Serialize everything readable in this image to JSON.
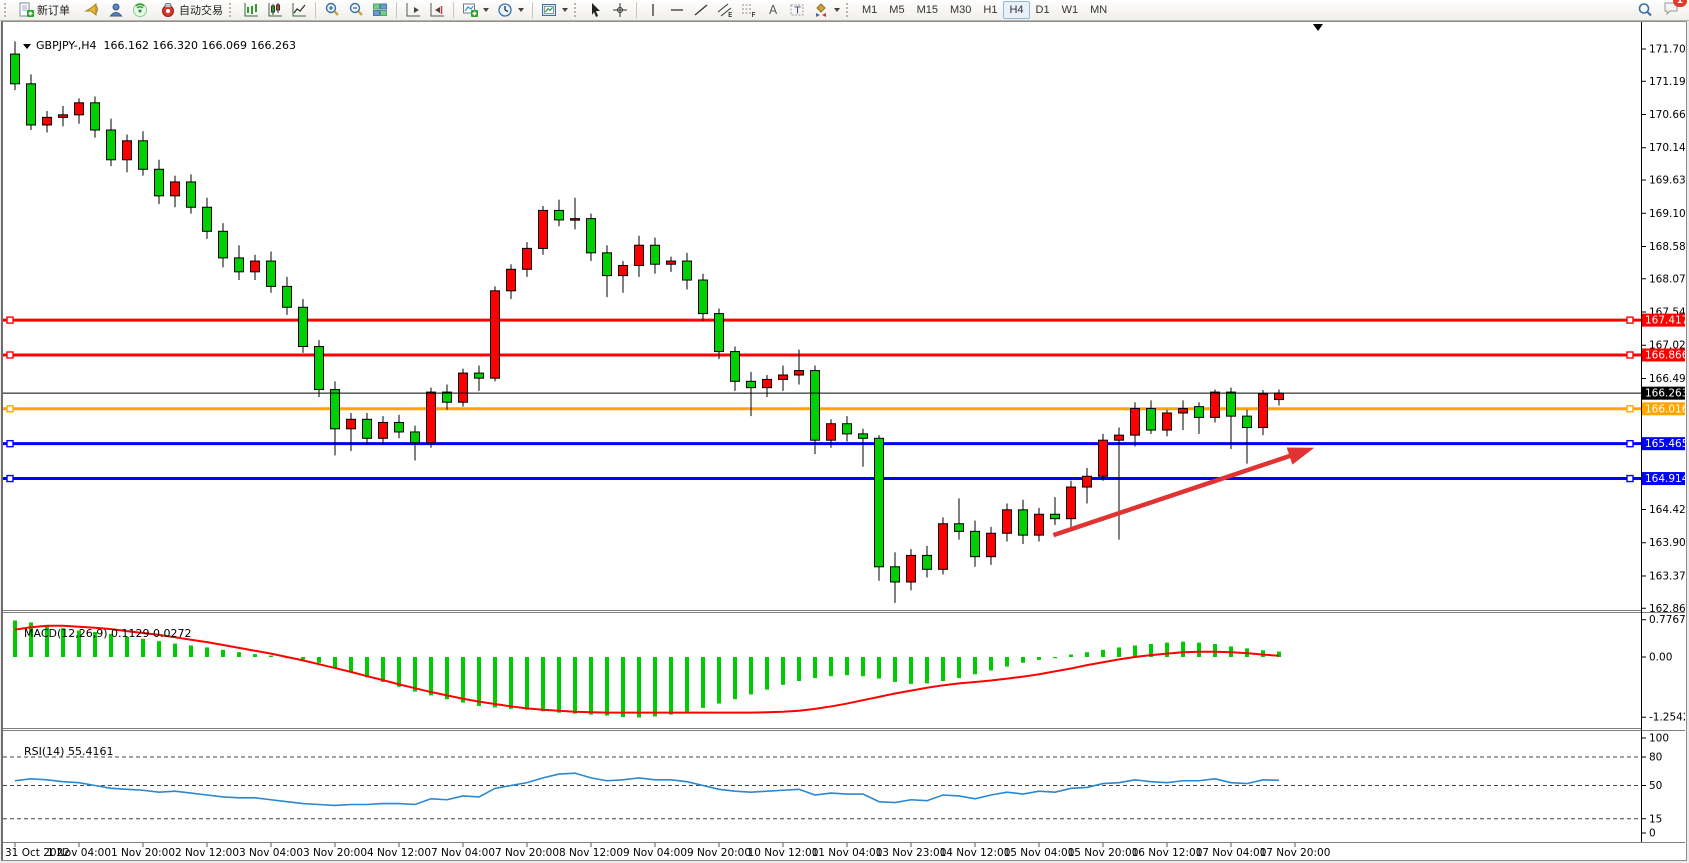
{
  "toolbar": {
    "new_order": "新订单",
    "autotrading": "自动交易",
    "timeframes": [
      "M1",
      "M5",
      "M15",
      "M30",
      "H1",
      "H4",
      "D1",
      "W1",
      "MN"
    ],
    "active_timeframe": "H4",
    "notification_badge": "1",
    "glyphs": {
      "channel": "E",
      "fibo": "F",
      "text": "A",
      "label": "T"
    }
  },
  "chart": {
    "symbol_with_period": "GBPJPY-,H4",
    "ohlc_text": "166.162 166.320 166.069 166.263"
  },
  "indicators": {
    "macd": {
      "title": "MACD(12,26,9)",
      "values": "0.1129 0.0272"
    },
    "rsi": {
      "title": "RSI(14)",
      "value": "55.4161"
    }
  },
  "chart_data": {
    "type": "candlestick",
    "symbol": "GBPJPY-",
    "timeframe": "H4",
    "current_bar": {
      "open": 166.162,
      "high": 166.32,
      "low": 166.069,
      "close": 166.263
    },
    "colors": {
      "up": "#fe0000",
      "down": "#00cf00",
      "wick": "#000000",
      "macd_hist": "#00cc00",
      "macd_signal": "#ff0000",
      "rsi_line": "#2a87d0",
      "arrow": "#e23333",
      "line_red": "#ff0000",
      "line_orange": "#ffa500",
      "line_blue": "#0000ff",
      "line_black": "#000000"
    },
    "price_axis_ticks": [
      171.7,
      171.19,
      170.665,
      170.14,
      169.63,
      169.105,
      168.58,
      168.07,
      167.545,
      167.02,
      166.495,
      164.425,
      163.9,
      163.375,
      162.865
    ],
    "price_range": [
      162.84,
      172.13
    ],
    "hlines": [
      {
        "price": 167.417,
        "color": "#ff0000",
        "width": 3,
        "handles": true
      },
      {
        "price": 166.866,
        "color": "#ff0000",
        "width": 3,
        "handles": true
      },
      {
        "price": 166.016,
        "color": "#ffa500",
        "width": 3,
        "handles": true
      },
      {
        "price": 165.465,
        "color": "#0000ff",
        "width": 3,
        "handles": true
      },
      {
        "price": 164.914,
        "color": "#0000ff",
        "width": 3,
        "handles": true
      }
    ],
    "current_price_line": {
      "price": 166.263,
      "color": "#000000",
      "width": 1
    },
    "axis_badges": [
      {
        "label": "167.417",
        "price": 167.417,
        "bg": "#ff0000"
      },
      {
        "label": "166.866",
        "price": 166.866,
        "bg": "#ff0000"
      },
      {
        "label": "166.263",
        "price": 166.263,
        "bg": "#000000"
      },
      {
        "label": "166.016",
        "price": 166.016,
        "bg": "#ffa500"
      },
      {
        "label": "165.465",
        "price": 165.465,
        "bg": "#0000ff"
      },
      {
        "label": "164.914",
        "price": 164.914,
        "bg": "#0000ff"
      }
    ],
    "time_labels": [
      "31 Oct 2022",
      "1 Nov 04:00",
      "1 Nov 20:00",
      "2 Nov 12:00",
      "3 Nov 04:00",
      "3 Nov 20:00",
      "4 Nov 12:00",
      "7 Nov 04:00",
      "7 Nov 20:00",
      "8 Nov 12:00",
      "9 Nov 04:00",
      "9 Nov 20:00",
      "10 Nov 12:00",
      "11 Nov 04:00",
      "13 Nov 23:00",
      "14 Nov 12:00",
      "15 Nov 04:00",
      "15 Nov 20:00",
      "16 Nov 12:00",
      "17 Nov 04:00",
      "17 Nov 20:00"
    ],
    "candles": [
      [
        171.62,
        171.82,
        171.05,
        171.15
      ],
      [
        171.15,
        171.3,
        170.42,
        170.5
      ],
      [
        170.5,
        170.72,
        170.38,
        170.62
      ],
      [
        170.62,
        170.8,
        170.48,
        170.66
      ],
      [
        170.66,
        170.92,
        170.52,
        170.85
      ],
      [
        170.85,
        170.95,
        170.3,
        170.42
      ],
      [
        170.42,
        170.6,
        169.85,
        169.95
      ],
      [
        169.95,
        170.35,
        169.75,
        170.25
      ],
      [
        170.25,
        170.4,
        169.7,
        169.8
      ],
      [
        169.8,
        169.95,
        169.25,
        169.38
      ],
      [
        169.38,
        169.7,
        169.2,
        169.6
      ],
      [
        169.6,
        169.72,
        169.1,
        169.2
      ],
      [
        169.2,
        169.35,
        168.7,
        168.82
      ],
      [
        168.82,
        168.95,
        168.25,
        168.4
      ],
      [
        168.4,
        168.6,
        168.05,
        168.18
      ],
      [
        168.18,
        168.45,
        168.05,
        168.35
      ],
      [
        168.35,
        168.5,
        167.85,
        167.95
      ],
      [
        167.95,
        168.1,
        167.5,
        167.62
      ],
      [
        167.62,
        167.75,
        166.9,
        167.0
      ],
      [
        167.0,
        167.1,
        166.2,
        166.32
      ],
      [
        166.32,
        166.45,
        165.28,
        165.7
      ],
      [
        165.7,
        165.95,
        165.35,
        165.85
      ],
      [
        165.85,
        165.95,
        165.45,
        165.55
      ],
      [
        165.55,
        165.9,
        165.45,
        165.8
      ],
      [
        165.8,
        165.92,
        165.55,
        165.65
      ],
      [
        165.65,
        165.75,
        165.2,
        165.48
      ],
      [
        165.48,
        166.35,
        165.4,
        166.28
      ],
      [
        166.28,
        166.4,
        166.0,
        166.12
      ],
      [
        166.12,
        166.65,
        166.05,
        166.58
      ],
      [
        166.58,
        166.7,
        166.3,
        166.5
      ],
      [
        166.5,
        167.95,
        166.45,
        167.88
      ],
      [
        167.88,
        168.3,
        167.75,
        168.22
      ],
      [
        168.22,
        168.65,
        168.1,
        168.55
      ],
      [
        168.55,
        169.22,
        168.45,
        169.15
      ],
      [
        169.15,
        169.32,
        168.9,
        169.0
      ],
      [
        169.0,
        169.35,
        168.85,
        169.02
      ],
      [
        169.02,
        169.1,
        168.35,
        168.48
      ],
      [
        168.48,
        168.6,
        167.78,
        168.12
      ],
      [
        168.12,
        168.35,
        167.85,
        168.28
      ],
      [
        168.28,
        168.75,
        168.1,
        168.6
      ],
      [
        168.6,
        168.72,
        168.15,
        168.3
      ],
      [
        168.3,
        168.42,
        168.18,
        168.35
      ],
      [
        168.35,
        168.48,
        167.9,
        168.05
      ],
      [
        168.05,
        168.15,
        167.4,
        167.52
      ],
      [
        167.52,
        167.6,
        166.8,
        166.92
      ],
      [
        166.92,
        167.0,
        166.3,
        166.45
      ],
      [
        166.45,
        166.6,
        165.9,
        166.35
      ],
      [
        166.35,
        166.55,
        166.2,
        166.48
      ],
      [
        166.48,
        166.7,
        166.3,
        166.55
      ],
      [
        166.55,
        166.95,
        166.4,
        166.62
      ],
      [
        166.62,
        166.7,
        165.3,
        165.52
      ],
      [
        165.52,
        165.85,
        165.4,
        165.78
      ],
      [
        165.78,
        165.9,
        165.5,
        165.62
      ],
      [
        165.62,
        165.7,
        165.1,
        165.55
      ],
      [
        165.55,
        165.6,
        163.3,
        163.52
      ],
      [
        163.52,
        163.75,
        162.95,
        163.28
      ],
      [
        163.28,
        163.8,
        163.15,
        163.7
      ],
      [
        163.7,
        163.85,
        163.35,
        163.48
      ],
      [
        163.48,
        164.3,
        163.4,
        164.2
      ],
      [
        164.2,
        164.6,
        163.95,
        164.08
      ],
      [
        164.08,
        164.25,
        163.52,
        163.68
      ],
      [
        163.68,
        164.15,
        163.55,
        164.05
      ],
      [
        164.05,
        164.52,
        163.92,
        164.42
      ],
      [
        164.42,
        164.58,
        163.88,
        164.02
      ],
      [
        164.02,
        164.45,
        163.92,
        164.35
      ],
      [
        164.35,
        164.62,
        164.18,
        164.28
      ],
      [
        164.28,
        164.88,
        164.15,
        164.78
      ],
      [
        164.78,
        165.08,
        164.52,
        164.95
      ],
      [
        164.95,
        165.62,
        164.88,
        165.52
      ],
      [
        165.52,
        165.72,
        163.95,
        165.6
      ],
      [
        165.6,
        166.12,
        165.42,
        166.02
      ],
      [
        166.02,
        166.15,
        165.62,
        165.68
      ],
      [
        165.68,
        166.0,
        165.58,
        165.95
      ],
      [
        165.95,
        166.15,
        165.68,
        166.02
      ],
      [
        166.05,
        166.12,
        165.62,
        165.88
      ],
      [
        165.88,
        166.32,
        165.8,
        166.28
      ],
      [
        166.28,
        166.35,
        165.38,
        165.9
      ],
      [
        165.9,
        166.0,
        165.15,
        165.72
      ],
      [
        165.72,
        166.31,
        165.6,
        166.25
      ],
      [
        166.162,
        166.32,
        166.069,
        166.263
      ]
    ],
    "arrow_annotation": {
      "from_index": 64.9,
      "from_price": 164.02,
      "to_index": 81.2,
      "to_price": 165.4
    },
    "macd": {
      "label": "MACD(12,26,9)",
      "main_value": 0.1129,
      "signal_value": 0.0272,
      "axis_ticks": [
        {
          "v": 0.7767,
          "label": "0.7767"
        },
        {
          "v": 0,
          "label": "0.00"
        },
        {
          "v": -1.2542,
          "label": "-1.2542"
        }
      ],
      "histogram": [
        0.76,
        0.72,
        0.66,
        0.6,
        0.55,
        0.52,
        0.48,
        0.42,
        0.38,
        0.33,
        0.28,
        0.24,
        0.2,
        0.15,
        0.1,
        0.06,
        0.03,
        0.0,
        -0.05,
        -0.12,
        -0.22,
        -0.32,
        -0.42,
        -0.52,
        -0.62,
        -0.72,
        -0.8,
        -0.88,
        -0.95,
        -1.02,
        -1.05,
        -1.08,
        -1.1,
        -1.13,
        -1.16,
        -1.18,
        -1.2,
        -1.22,
        -1.25,
        -1.26,
        -1.24,
        -1.2,
        -1.14,
        -1.06,
        -0.97,
        -0.88,
        -0.78,
        -0.68,
        -0.58,
        -0.5,
        -0.44,
        -0.4,
        -0.38,
        -0.4,
        -0.45,
        -0.52,
        -0.56,
        -0.55,
        -0.5,
        -0.44,
        -0.36,
        -0.28,
        -0.2,
        -0.12,
        -0.06,
        0.0,
        0.05,
        0.1,
        0.15,
        0.2,
        0.24,
        0.27,
        0.3,
        0.32,
        0.3,
        0.27,
        0.22,
        0.18,
        0.14,
        0.1129
      ],
      "signal": [
        0.57,
        0.62,
        0.65,
        0.65,
        0.63,
        0.61,
        0.58,
        0.54,
        0.5,
        0.46,
        0.41,
        0.36,
        0.31,
        0.25,
        0.19,
        0.13,
        0.07,
        0.0,
        -0.07,
        -0.15,
        -0.23,
        -0.31,
        -0.4,
        -0.48,
        -0.57,
        -0.65,
        -0.73,
        -0.8,
        -0.87,
        -0.93,
        -0.98,
        -1.03,
        -1.07,
        -1.1,
        -1.12,
        -1.14,
        -1.15,
        -1.16,
        -1.16,
        -1.16,
        -1.16,
        -1.16,
        -1.16,
        -1.16,
        -1.16,
        -1.16,
        -1.16,
        -1.15,
        -1.14,
        -1.12,
        -1.08,
        -1.03,
        -0.97,
        -0.9,
        -0.83,
        -0.76,
        -0.7,
        -0.64,
        -0.59,
        -0.55,
        -0.52,
        -0.49,
        -0.45,
        -0.41,
        -0.36,
        -0.3,
        -0.24,
        -0.17,
        -0.11,
        -0.05,
        0.0,
        0.04,
        0.07,
        0.1,
        0.11,
        0.11,
        0.1,
        0.08,
        0.05,
        0.0272
      ]
    },
    "rsi": {
      "label": "RSI(14)",
      "value": 55.4161,
      "axis_ticks": [
        100,
        80,
        50,
        15,
        0
      ],
      "levels": [
        80,
        50,
        15
      ],
      "values": [
        55,
        57,
        56,
        54,
        53,
        50,
        47,
        46,
        45,
        43,
        44,
        42,
        40,
        38,
        37,
        37,
        35,
        33,
        31,
        30,
        29,
        30,
        30,
        31,
        31,
        30,
        36,
        35,
        39,
        38,
        47,
        50,
        53,
        58,
        62,
        63,
        58,
        55,
        56,
        58,
        56,
        56,
        54,
        50,
        46,
        44,
        43,
        44,
        45,
        46,
        40,
        42,
        41,
        41,
        33,
        32,
        35,
        34,
        40,
        39,
        36,
        40,
        43,
        41,
        44,
        43,
        47,
        48,
        52,
        53,
        56,
        54,
        53,
        55,
        55,
        57,
        53,
        52,
        56,
        55.42
      ]
    }
  }
}
